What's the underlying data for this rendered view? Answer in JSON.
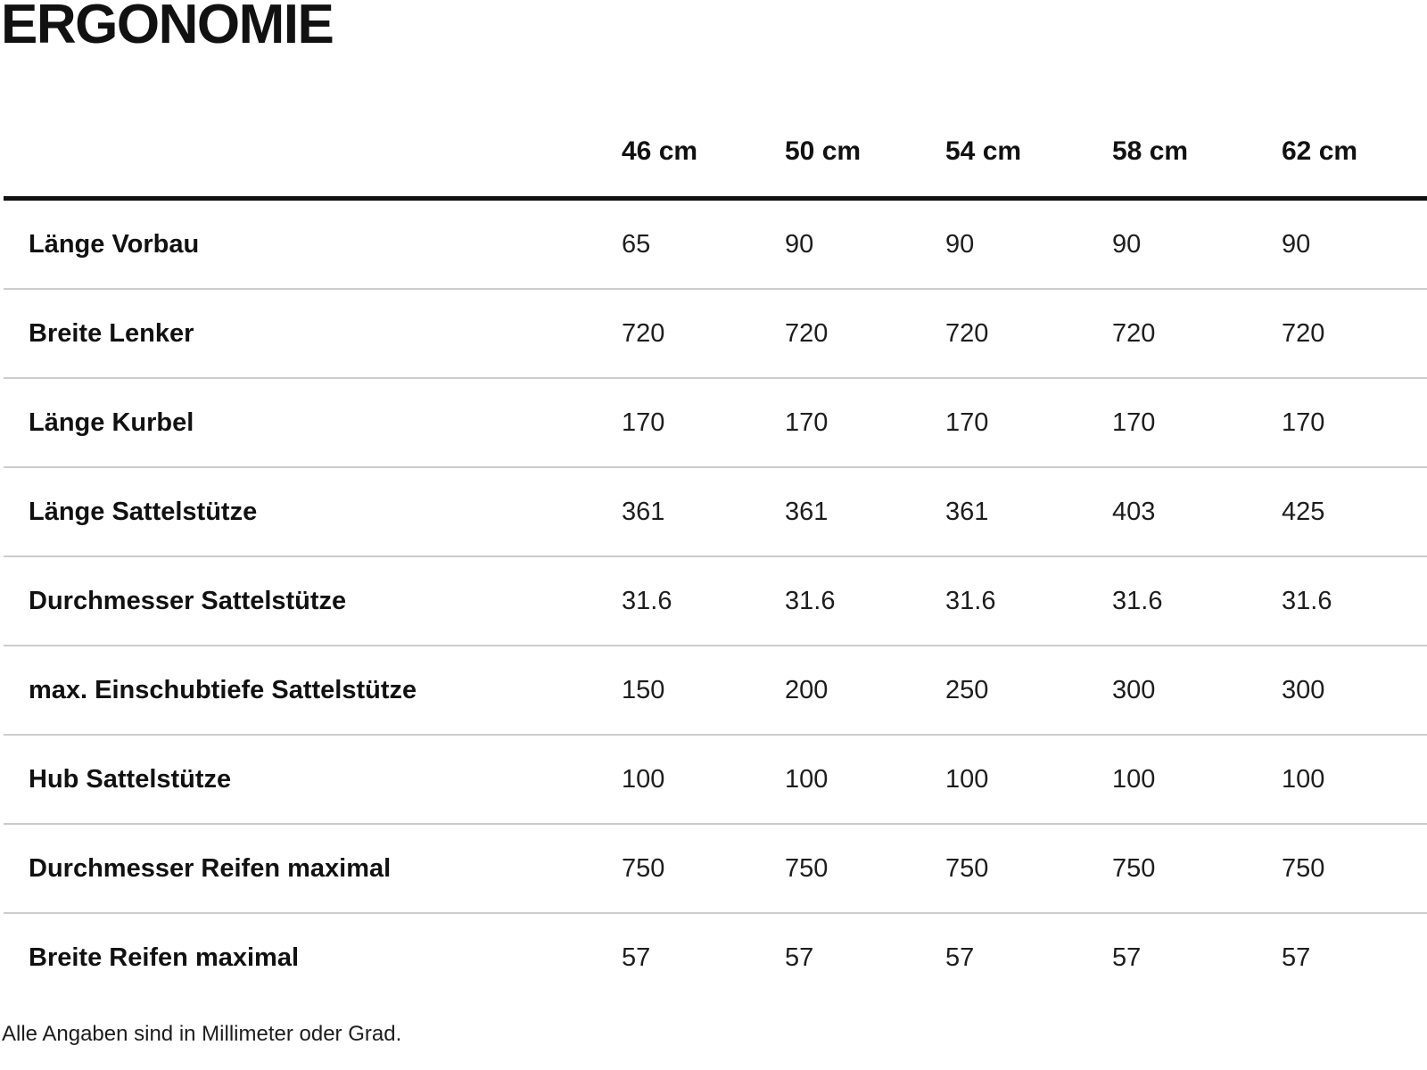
{
  "title": "ERGONOMIE",
  "table": {
    "columns": [
      "46 cm",
      "50 cm",
      "54 cm",
      "58 cm",
      "62 cm"
    ],
    "rows": [
      {
        "label": "Länge Vorbau",
        "values": [
          "65",
          "90",
          "90",
          "90",
          "90"
        ]
      },
      {
        "label": "Breite Lenker",
        "values": [
          "720",
          "720",
          "720",
          "720",
          "720"
        ]
      },
      {
        "label": "Länge Kurbel",
        "values": [
          "170",
          "170",
          "170",
          "170",
          "170"
        ]
      },
      {
        "label": "Länge Sattelstütze",
        "values": [
          "361",
          "361",
          "361",
          "403",
          "425"
        ]
      },
      {
        "label": "Durchmesser Sattelstütze",
        "values": [
          "31.6",
          "31.6",
          "31.6",
          "31.6",
          "31.6"
        ]
      },
      {
        "label": "max. Einschubtiefe Sattelstütze",
        "values": [
          "150",
          "200",
          "250",
          "300",
          "300"
        ]
      },
      {
        "label": "Hub Sattelstütze",
        "values": [
          "100",
          "100",
          "100",
          "100",
          "100"
        ]
      },
      {
        "label": "Durchmesser Reifen maximal",
        "values": [
          "750",
          "750",
          "750",
          "750",
          "750"
        ]
      },
      {
        "label": "Breite Reifen maximal",
        "values": [
          "57",
          "57",
          "57",
          "57",
          "57"
        ]
      }
    ]
  },
  "footnote": "Alle Angaben sind in Millimeter oder Grad.",
  "colors": {
    "text": "#111111",
    "value_text": "#1d1d1d",
    "header_rule": "#111111",
    "row_separator": "#cccccc",
    "background": "#ffffff"
  }
}
